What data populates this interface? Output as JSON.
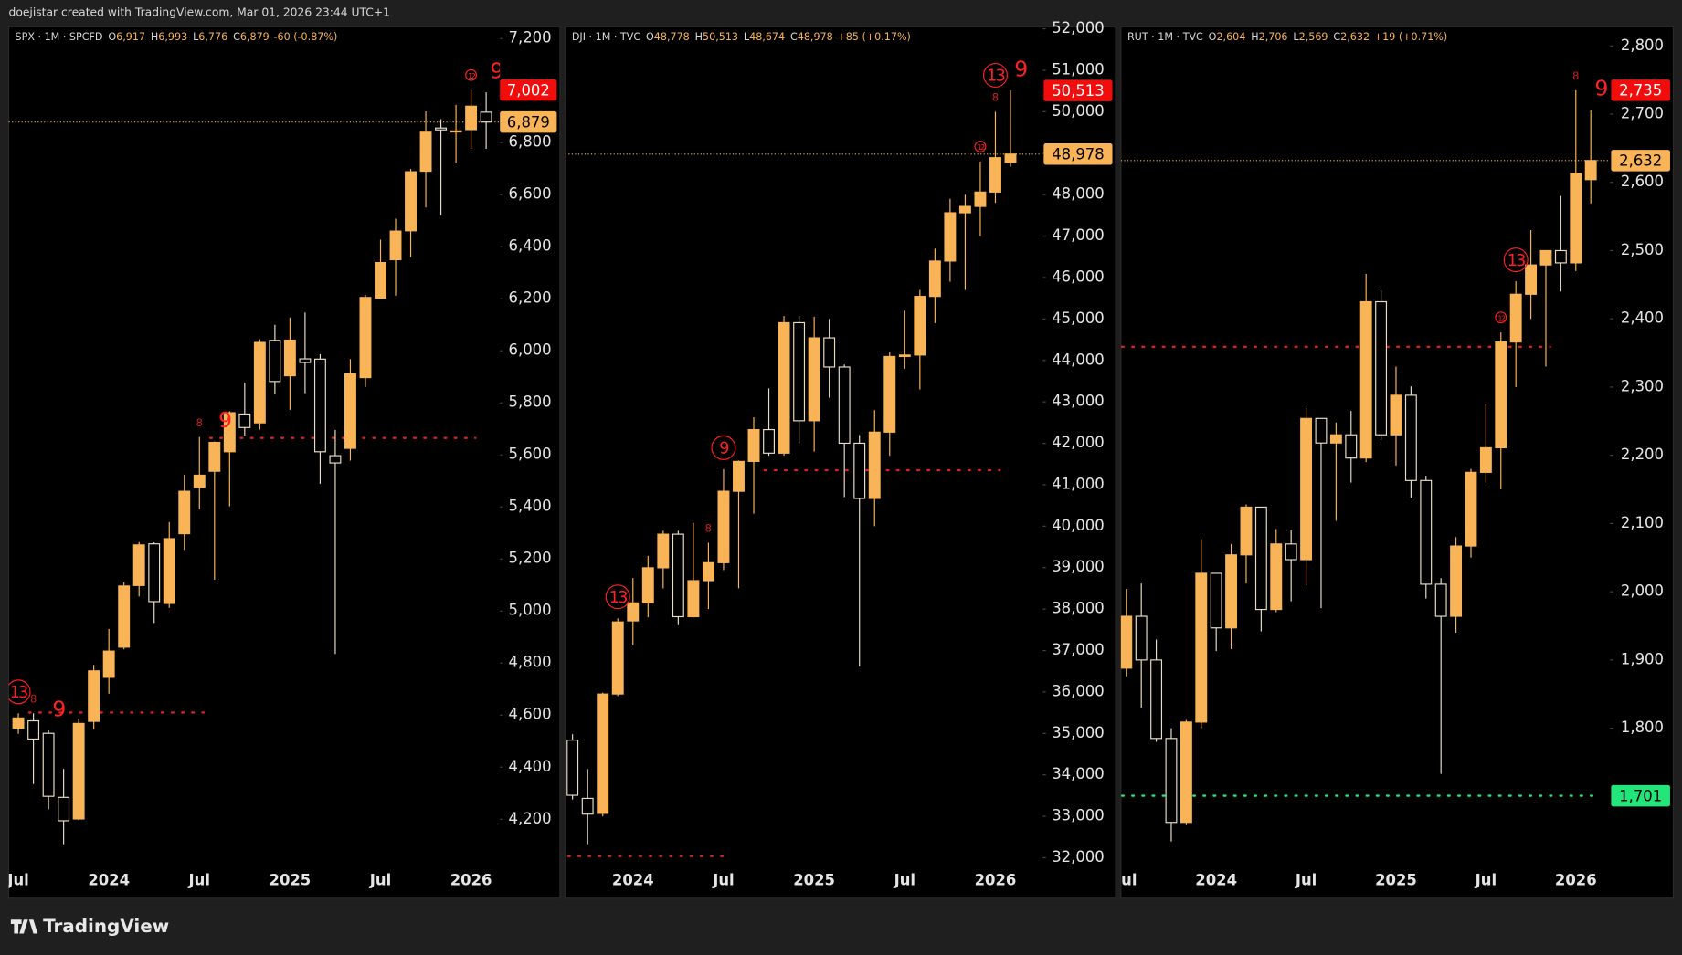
{
  "header": {
    "credit": "doejistar created with TradingView.com, Mar 01, 2026 23:44 UTC+1"
  },
  "footer": {
    "brand": "TradingView"
  },
  "chart_data": [
    {
      "type": "candlestick",
      "title": "SPX · 1M · SPCFD",
      "quote": [
        {
          "key": "O",
          "value": 6917,
          "label": "6,917"
        },
        {
          "key": "H",
          "value": 6993,
          "label": "6,993"
        },
        {
          "key": "L",
          "value": 6776,
          "label": "6,776"
        },
        {
          "key": "C",
          "value": 6879,
          "label": "6,879"
        }
      ],
      "change": {
        "value": -60,
        "label": "-60 (-0.87%)"
      },
      "up_color": "#f9b457",
      "down_color": "#000000",
      "wick_color": "#e9dcc4",
      "categories": [
        "Jul",
        null,
        null,
        null,
        null,
        null,
        "2024",
        null,
        null,
        null,
        null,
        null,
        "Jul",
        null,
        null,
        null,
        null,
        null,
        "2025",
        null,
        null,
        null,
        null,
        null,
        "Jul",
        null,
        null,
        null,
        null,
        null,
        "2026",
        null
      ],
      "open": [
        4550,
        4578,
        4530,
        4284,
        4201,
        4576,
        4745,
        4861,
        5098,
        5258,
        5029,
        5297,
        5475,
        5537,
        5612,
        5757,
        5723,
        6040,
        5904,
        5969,
        5968,
        5597,
        5625,
        5897,
        6202,
        6350,
        6461,
        6690,
        6856,
        6845,
        6850,
        6917
      ],
      "high": [
        4607,
        4607,
        4541,
        4393,
        4587,
        4793,
        4931,
        5111,
        5265,
        5264,
        5342,
        5524,
        5669,
        5651,
        5768,
        5878,
        6044,
        6100,
        6128,
        6147,
        5987,
        5696,
        5968,
        6215,
        6427,
        6508,
        6699,
        6920,
        6890,
        6945,
        7002,
        6993
      ],
      "low": [
        4528,
        4335,
        4238,
        4104,
        4197,
        4546,
        4682,
        4853,
        5056,
        4954,
        5012,
        5235,
        5391,
        5120,
        5402,
        5674,
        5697,
        5832,
        5773,
        5837,
        5489,
        4835,
        5578,
        5861,
        6201,
        6212,
        6360,
        6551,
        6521,
        6720,
        6776,
        6776
      ],
      "close": [
        4589,
        4508,
        4288,
        4194,
        4568,
        4770,
        4846,
        5096,
        5254,
        5036,
        5278,
        5460,
        5522,
        5648,
        5762,
        5705,
        6032,
        5882,
        6041,
        5955,
        5612,
        5569,
        5912,
        6205,
        6339,
        6460,
        6688,
        6840,
        6849,
        6845,
        6940,
        6879
      ],
      "ylim": [
        4020,
        7245
      ],
      "yticks": [
        {
          "value": 4200,
          "label": "4,200"
        },
        {
          "value": 4400,
          "label": "4,400"
        },
        {
          "value": 4600,
          "label": "4,600"
        },
        {
          "value": 4800,
          "label": "4,800"
        },
        {
          "value": 5000,
          "label": "5,000"
        },
        {
          "value": 5200,
          "label": "5,200"
        },
        {
          "value": 5400,
          "label": "5,400"
        },
        {
          "value": 5600,
          "label": "5,600"
        },
        {
          "value": 5800,
          "label": "5,800"
        },
        {
          "value": 6000,
          "label": "6,000"
        },
        {
          "value": 6200,
          "label": "6,200"
        },
        {
          "value": 6400,
          "label": "6,400"
        },
        {
          "value": 6600,
          "label": "6,600"
        },
        {
          "value": 6800,
          "label": "6,800"
        },
        {
          "value": 7000,
          "label": "7,000"
        },
        {
          "value": 7200,
          "label": "7,200"
        }
      ],
      "price_labels": [
        {
          "value": 7002,
          "label": "7,002",
          "color": "#f20d0d"
        },
        {
          "value": 6879,
          "label": "6,879",
          "color": "#f9b457"
        }
      ],
      "levels": [
        {
          "value": 4610,
          "from": 1,
          "to": 12,
          "color": "#e02020"
        },
        {
          "value": 5665,
          "from": 13,
          "to": 30,
          "color": "#e02020"
        }
      ],
      "annotations": [
        {
          "index": 0,
          "label": "13",
          "circled": true
        },
        {
          "index": 1,
          "label": "8",
          "small": true
        },
        {
          "index": 2,
          "label": "9"
        },
        {
          "index": 12,
          "label": "8",
          "small": true
        },
        {
          "index": 13,
          "label": "9"
        },
        {
          "index": 30,
          "label": "12",
          "small": true,
          "circled": true
        },
        {
          "index": 31,
          "label": "9"
        }
      ]
    },
    {
      "type": "candlestick",
      "title": "DJI · 1M · TVC",
      "quote": [
        {
          "key": "O",
          "value": 48778,
          "label": "48,778"
        },
        {
          "key": "H",
          "value": 50513,
          "label": "50,513"
        },
        {
          "key": "L",
          "value": 48674,
          "label": "48,674"
        },
        {
          "key": "C",
          "value": 48978,
          "label": "48,978"
        }
      ],
      "change": {
        "value": 85,
        "label": "+85 (+0.17%)"
      },
      "up_color": "#f9b457",
      "down_color": "#000000",
      "wick_color": "#e9dcc4",
      "categories": [
        null,
        null,
        null,
        null,
        "2024",
        null,
        null,
        null,
        null,
        null,
        "Jul",
        null,
        null,
        null,
        null,
        null,
        "2025",
        null,
        null,
        null,
        null,
        null,
        "Jul",
        null,
        null,
        null,
        null,
        null,
        "2026",
        null
      ],
      "open": [
        34838,
        33433,
        33071,
        35951,
        37715,
        38150,
        38996,
        39807,
        37816,
        38686,
        39119,
        40842,
        41563,
        42330,
        41763,
        44910,
        42544,
        44544,
        43841,
        42002,
        40669,
        42270,
        44095,
        44130,
        45545,
        46398,
        47563,
        47716,
        48063,
        48778
      ],
      "high": [
        34979,
        34142,
        35984,
        37778,
        38749,
        39283,
        39890,
        39889,
        40077,
        39600,
        41376,
        41585,
        42628,
        43325,
        45071,
        45074,
        45054,
        45000,
        43900,
        42200,
        42800,
        44200,
        45200,
        45700,
        46700,
        47900,
        48000,
        48800,
        50000,
        50513
      ],
      "low": [
        33407,
        32327,
        33000,
        35901,
        37122,
        37800,
        38500,
        37611,
        37800,
        38000,
        38940,
        38500,
        40300,
        41700,
        41700,
        42000,
        41800,
        43100,
        40700,
        36612,
        40000,
        41700,
        43800,
        43300,
        44900,
        45900,
        45700,
        47000,
        47800,
        48674
      ],
      "close": [
        33508,
        33053,
        35950,
        37690,
        38150,
        38996,
        39807,
        37816,
        38686,
        39119,
        40842,
        41563,
        42330,
        41763,
        44910,
        42544,
        44544,
        43841,
        42002,
        40669,
        42270,
        44095,
        44130,
        45545,
        46398,
        47563,
        47716,
        48063,
        48892,
        48978
      ],
      "ylim": [
        31800,
        52050
      ],
      "yticks": [
        {
          "value": 32000,
          "label": "32,000"
        },
        {
          "value": 33000,
          "label": "33,000"
        },
        {
          "value": 34000,
          "label": "34,000"
        },
        {
          "value": 35000,
          "label": "35,000"
        },
        {
          "value": 36000,
          "label": "36,000"
        },
        {
          "value": 37000,
          "label": "37,000"
        },
        {
          "value": 38000,
          "label": "38,000"
        },
        {
          "value": 39000,
          "label": "39,000"
        },
        {
          "value": 40000,
          "label": "40,000"
        },
        {
          "value": 41000,
          "label": "41,000"
        },
        {
          "value": 42000,
          "label": "42,000"
        },
        {
          "value": 43000,
          "label": "43,000"
        },
        {
          "value": 44000,
          "label": "44,000"
        },
        {
          "value": 45000,
          "label": "45,000"
        },
        {
          "value": 46000,
          "label": "46,000"
        },
        {
          "value": 47000,
          "label": "47,000"
        },
        {
          "value": 48000,
          "label": "48,000"
        },
        {
          "value": 49000,
          "label": "49,000"
        },
        {
          "value": 50000,
          "label": "50,000"
        },
        {
          "value": 51000,
          "label": "51,000"
        },
        {
          "value": 52000,
          "label": "52,000"
        }
      ],
      "price_labels": [
        {
          "value": 50513,
          "label": "50,513",
          "color": "#f20d0d"
        },
        {
          "value": 48978,
          "label": "48,978",
          "color": "#f9b457"
        }
      ],
      "levels": [
        {
          "value": 32040,
          "from": 0,
          "to": 10,
          "color": "#e02020"
        },
        {
          "value": 41350,
          "from": 13,
          "to": 28,
          "color": "#e02020"
        }
      ],
      "annotations": [
        {
          "index": 3,
          "label": "13",
          "circled": true
        },
        {
          "index": 9,
          "label": "8",
          "small": true
        },
        {
          "index": 10,
          "label": "9",
          "circled": true
        },
        {
          "index": 27,
          "label": "12",
          "small": true,
          "circled": true
        },
        {
          "index": 28,
          "label": "8",
          "small": true
        },
        {
          "index": 28,
          "label": "13",
          "circled": true
        },
        {
          "index": 29,
          "label": "9"
        }
      ]
    },
    {
      "type": "candlestick",
      "title": "RUT · 1M · TVC",
      "quote": [
        {
          "key": "O",
          "value": 2604,
          "label": "2,604"
        },
        {
          "key": "H",
          "value": 2706,
          "label": "2,706"
        },
        {
          "key": "L",
          "value": 2569,
          "label": "2,569"
        },
        {
          "key": "C",
          "value": 2632,
          "label": "2,632"
        }
      ],
      "change": {
        "value": 19,
        "label": "+19 (+0.71%)"
      },
      "up_color": "#f9b457",
      "down_color": "#000000",
      "wick_color": "#e9dcc4",
      "categories": [
        "Jul",
        null,
        null,
        null,
        null,
        null,
        "2024",
        null,
        null,
        null,
        null,
        null,
        "Jul",
        null,
        null,
        null,
        null,
        null,
        "2025",
        null,
        null,
        null,
        null,
        null,
        "Jul",
        null,
        null,
        null,
        null,
        null,
        "2026",
        null
      ],
      "open": [
        1888,
        1964,
        1900,
        1785,
        1662,
        1809,
        2027,
        1947,
        2054,
        2124,
        1974,
        2070,
        2047,
        2254,
        2218,
        2230,
        2196,
        2425,
        2230,
        2288,
        2163,
        2011,
        1964,
        2067,
        2175,
        2211,
        2366,
        2436,
        2479,
        2500,
        2482,
        2604
      ],
      "high": [
        2004,
        2012,
        1930,
        1800,
        1812,
        2077,
        2027,
        2070,
        2128,
        2124,
        2092,
        2090,
        2269,
        2254,
        2248,
        2265,
        2466,
        2442,
        2330,
        2301,
        2170,
        2020,
        2080,
        2180,
        2275,
        2380,
        2455,
        2530,
        2495,
        2580,
        2735,
        2706
      ],
      "low": [
        1876,
        1830,
        1780,
        1634,
        1658,
        1800,
        1913,
        1916,
        2012,
        1942,
        1970,
        1986,
        2009,
        1976,
        2104,
        2160,
        2190,
        2222,
        2185,
        2138,
        1990,
        1733,
        1940,
        2050,
        2160,
        2150,
        2300,
        2400,
        2330,
        2440,
        2470,
        2569
      ],
      "close": [
        1964,
        1900,
        1785,
        1662,
        1809,
        2027,
        1947,
        2054,
        2124,
        1974,
        2070,
        2047,
        2254,
        2218,
        2230,
        2196,
        2425,
        2230,
        2288,
        2163,
        2011,
        1964,
        2067,
        2175,
        2211,
        2366,
        2436,
        2479,
        2500,
        2482,
        2613,
        2632
      ],
      "ylim": [
        1598,
        2828
      ],
      "yticks": [
        {
          "value": 1800,
          "label": "1,800"
        },
        {
          "value": 1900,
          "label": "1,900"
        },
        {
          "value": 2000,
          "label": "2,000"
        },
        {
          "value": 2100,
          "label": "2,100"
        },
        {
          "value": 2200,
          "label": "2,200"
        },
        {
          "value": 2300,
          "label": "2,300"
        },
        {
          "value": 2400,
          "label": "2,400"
        },
        {
          "value": 2500,
          "label": "2,500"
        },
        {
          "value": 2600,
          "label": "2,600"
        },
        {
          "value": 2700,
          "label": "2,700"
        },
        {
          "value": 2800,
          "label": "2,800"
        }
      ],
      "price_labels": [
        {
          "value": 2735,
          "label": "2,735",
          "color": "#f20d0d"
        },
        {
          "value": 2632,
          "label": "2,632",
          "color": "#f9b457"
        },
        {
          "value": 1701,
          "label": "1,701",
          "color": "#22e67a"
        }
      ],
      "levels": [
        {
          "value": 2359,
          "from": 0,
          "to": 28,
          "color": "#e02020"
        },
        {
          "value": 1701,
          "from": 0,
          "to": 31,
          "color": "#22e67a"
        }
      ],
      "annotations": [
        {
          "index": 25,
          "label": "12",
          "small": true,
          "circled": true
        },
        {
          "index": 26,
          "label": "13",
          "circled": true
        },
        {
          "index": 30,
          "label": "8",
          "small": true
        },
        {
          "index": 31,
          "label": "9"
        }
      ]
    }
  ]
}
